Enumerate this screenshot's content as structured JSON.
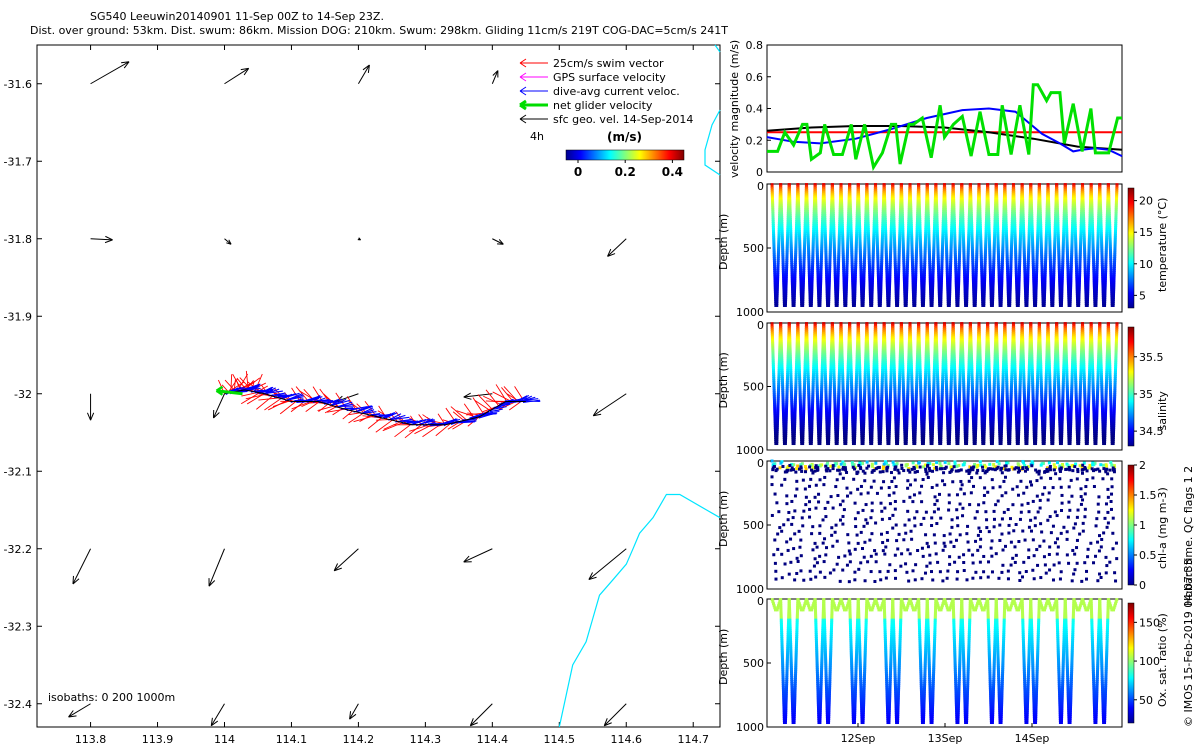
{
  "title": {
    "line1": "SG540 Leeuwin20140901 11-Sep 00Z to 14-Sep 23Z.",
    "line2": "Dist. over ground: 53km. Dist. swum: 86km. Mission DOG: 210km. Swum: 298km. Gliding 11cm/s 219T COG-DAC=5cm/s 241T"
  },
  "chart_data": [
    {
      "type": "map-vector",
      "lon_ticks": [
        "113.8",
        "113.9",
        "114",
        "114.1",
        "114.2",
        "114.3",
        "114.4",
        "114.5",
        "114.6",
        "114.7"
      ],
      "lat_ticks": [
        "-31.6",
        "-31.7",
        "-31.8",
        "-31.9",
        "-32",
        "-32.1",
        "-32.2",
        "-32.3",
        "-32.4"
      ],
      "xlim": [
        113.72,
        114.74
      ],
      "ylim": [
        -32.43,
        -31.55
      ],
      "legend": {
        "placement": "top-right",
        "entries": [
          {
            "label": "25cm/s swim vector",
            "color": "#ff0000"
          },
          {
            "label": "GPS surface velocity",
            "color": "#ff00ff"
          },
          {
            "label": "dive-avg current veloc.",
            "color": "#0000ff"
          },
          {
            "label": "net glider velocity",
            "color": "#00dd00"
          },
          {
            "label": "sfc geo. vel. 14-Sep-2014",
            "color": "#000000"
          }
        ],
        "interval": "4h"
      },
      "colorbar": {
        "label": "(m/s)",
        "ticks": [
          "0",
          "0.2",
          "0.4"
        ],
        "range": [
          0,
          0.5
        ]
      },
      "isobaths": "isobaths: 0   200  1000m",
      "geo_vectors": [
        {
          "lon": 113.8,
          "lat": -31.6,
          "u": 0.35,
          "v": 0.2
        },
        {
          "lon": 114.0,
          "lat": -31.6,
          "u": 0.22,
          "v": 0.14
        },
        {
          "lon": 114.2,
          "lat": -31.6,
          "u": 0.1,
          "v": 0.17
        },
        {
          "lon": 114.4,
          "lat": -31.6,
          "u": 0.05,
          "v": 0.12
        },
        {
          "lon": 113.8,
          "lat": -31.8,
          "u": 0.2,
          "v": -0.01
        },
        {
          "lon": 114.0,
          "lat": -31.8,
          "u": 0.06,
          "v": -0.05
        },
        {
          "lon": 114.2,
          "lat": -31.8,
          "u": 0.02,
          "v": -0.01
        },
        {
          "lon": 114.4,
          "lat": -31.8,
          "u": 0.1,
          "v": -0.05
        },
        {
          "lon": 114.6,
          "lat": -31.8,
          "u": -0.17,
          "v": -0.16
        },
        {
          "lon": 113.8,
          "lat": -32.0,
          "u": 0.0,
          "v": -0.24
        },
        {
          "lon": 114.0,
          "lat": -32.0,
          "u": -0.1,
          "v": -0.22
        },
        {
          "lon": 114.2,
          "lat": -32.0,
          "u": -0.2,
          "v": -0.07
        },
        {
          "lon": 114.4,
          "lat": -32.0,
          "u": -0.26,
          "v": -0.03
        },
        {
          "lon": 114.6,
          "lat": -32.0,
          "u": -0.3,
          "v": -0.2
        },
        {
          "lon": 113.8,
          "lat": -32.2,
          "u": -0.16,
          "v": -0.32
        },
        {
          "lon": 114.0,
          "lat": -32.2,
          "u": -0.14,
          "v": -0.34
        },
        {
          "lon": 114.2,
          "lat": -32.2,
          "u": -0.22,
          "v": -0.2
        },
        {
          "lon": 114.4,
          "lat": -32.2,
          "u": -0.26,
          "v": -0.12
        },
        {
          "lon": 114.6,
          "lat": -32.2,
          "u": -0.34,
          "v": -0.28
        },
        {
          "lon": 113.8,
          "lat": -32.4,
          "u": -0.2,
          "v": -0.12
        },
        {
          "lon": 114.0,
          "lat": -32.4,
          "u": -0.12,
          "v": -0.2
        },
        {
          "lon": 114.2,
          "lat": -32.4,
          "u": -0.08,
          "v": -0.14
        },
        {
          "lon": 114.4,
          "lat": -32.4,
          "u": -0.2,
          "v": -0.2
        },
        {
          "lon": 114.6,
          "lat": -32.4,
          "u": -0.2,
          "v": -0.2
        }
      ],
      "glider_track": {
        "lon": [
          114.45,
          114.42,
          114.38,
          114.33,
          114.28,
          114.23,
          114.18,
          114.14,
          114.1,
          114.06,
          114.03,
          114.0
        ],
        "lat": [
          -32.01,
          -32.01,
          -32.03,
          -32.04,
          -32.04,
          -32.03,
          -32.02,
          -32.01,
          -32.01,
          -32.0,
          -31.995,
          -32.0
        ]
      },
      "coastline": {
        "lon": [
          114.74,
          114.72,
          114.68,
          114.66,
          114.64,
          114.62,
          114.61,
          114.6,
          114.58,
          114.56,
          114.55,
          114.54,
          114.52,
          114.51,
          114.5
        ],
        "lat": [
          -32.16,
          -32.15,
          -32.13,
          -32.13,
          -32.16,
          -32.18,
          -32.2,
          -32.22,
          -32.24,
          -32.26,
          -32.29,
          -32.32,
          -32.35,
          -32.39,
          -32.43
        ]
      }
    },
    {
      "type": "line",
      "ylabel": "velocity magnitude (m/s)",
      "ylim": [
        0,
        0.8
      ],
      "yticks": [
        "0",
        "0.2",
        "0.4",
        "0.6",
        "0.8"
      ],
      "xlim": [
        0,
        4
      ],
      "series": [
        {
          "color": "#ff0000",
          "x": [
            0,
            4
          ],
          "y": [
            0.25,
            0.25
          ]
        },
        {
          "color": "#000000",
          "x": [
            0,
            0.5,
            1,
            1.5,
            2,
            2.5,
            3,
            3.5,
            4
          ],
          "y": [
            0.26,
            0.28,
            0.29,
            0.29,
            0.28,
            0.25,
            0.21,
            0.16,
            0.14
          ]
        },
        {
          "color": "#0000ff",
          "x": [
            0,
            0.3,
            0.6,
            1,
            1.4,
            1.8,
            2.2,
            2.5,
            2.8,
            3.1,
            3.3,
            3.45,
            3.55,
            3.7,
            3.85,
            4
          ],
          "y": [
            0.22,
            0.19,
            0.18,
            0.21,
            0.27,
            0.34,
            0.39,
            0.4,
            0.38,
            0.24,
            0.18,
            0.13,
            0.14,
            0.15,
            0.14,
            0.1
          ]
        },
        {
          "color": "#00e000",
          "x": [
            0,
            0.12,
            0.2,
            0.3,
            0.4,
            0.45,
            0.5,
            0.6,
            0.65,
            0.75,
            0.85,
            0.95,
            1.0,
            1.1,
            1.2,
            1.3,
            1.4,
            1.45,
            1.5,
            1.6,
            1.65,
            1.75,
            1.85,
            1.95,
            2.0,
            2.1,
            2.2,
            2.3,
            2.4,
            2.5,
            2.6,
            2.65,
            2.75,
            2.85,
            2.95,
            3.0,
            3.05,
            3.15,
            3.2,
            3.3,
            3.35,
            3.45,
            3.55,
            3.65,
            3.7,
            3.85,
            3.95,
            4.0
          ],
          "y": [
            0.13,
            0.13,
            0.25,
            0.17,
            0.3,
            0.3,
            0.08,
            0.12,
            0.3,
            0.11,
            0.11,
            0.3,
            0.08,
            0.3,
            0.03,
            0.12,
            0.3,
            0.3,
            0.05,
            0.3,
            0.3,
            0.34,
            0.09,
            0.42,
            0.22,
            0.3,
            0.35,
            0.1,
            0.38,
            0.11,
            0.11,
            0.42,
            0.11,
            0.42,
            0.11,
            0.55,
            0.55,
            0.45,
            0.5,
            0.5,
            0.18,
            0.43,
            0.13,
            0.4,
            0.12,
            0.12,
            0.34,
            0.34
          ]
        }
      ]
    },
    {
      "type": "scatter",
      "variable": "temperature",
      "ylabel": "Depth (m)",
      "yticks": [
        "0",
        "500",
        "1000"
      ],
      "ylim": [
        0,
        1000
      ],
      "colorbar": {
        "label": "temperature (°C)",
        "ticks": [
          "5",
          "10",
          "15",
          "20"
        ],
        "range": [
          3,
          22
        ]
      },
      "profiles": 40
    },
    {
      "type": "scatter",
      "variable": "salinity",
      "ylabel": "Depth (m)",
      "yticks": [
        "0",
        "500",
        "1000"
      ],
      "ylim": [
        0,
        1000
      ],
      "colorbar": {
        "label": "salinity",
        "ticks": [
          "34.5",
          "35",
          "35.5"
        ],
        "range": [
          34.3,
          35.9
        ]
      },
      "profiles": 40
    },
    {
      "type": "scatter",
      "variable": "chl-a",
      "ylabel": "Depth (m)",
      "yticks": [
        "0",
        "500",
        "1000"
      ],
      "ylim": [
        0,
        1000
      ],
      "colorbar": {
        "label": "chl-a (mg m-3)",
        "ticks": [
          "0",
          "0.5",
          "1",
          "1.5",
          "2"
        ],
        "range": [
          0,
          2
        ]
      },
      "profiles": 40
    },
    {
      "type": "scatter",
      "variable": "oxygen",
      "ylabel": "Depth (m)",
      "yticks": [
        "0",
        "500",
        "1000"
      ],
      "ylim": [
        0,
        1000
      ],
      "xticks": [
        "12Sep",
        "13Sep",
        "14Sep"
      ],
      "colorbar": {
        "label": "Ox. sat. ratio (%)",
        "ticks": [
          "50",
          "100",
          "150"
        ],
        "range": [
          20,
          175
        ]
      },
      "profiles": 40
    }
  ],
  "footer": {
    "qc_note": "Hobart time. QC flags 1  2",
    "copyright": "© IMOS 15-Feb-2019 04:07:33"
  }
}
